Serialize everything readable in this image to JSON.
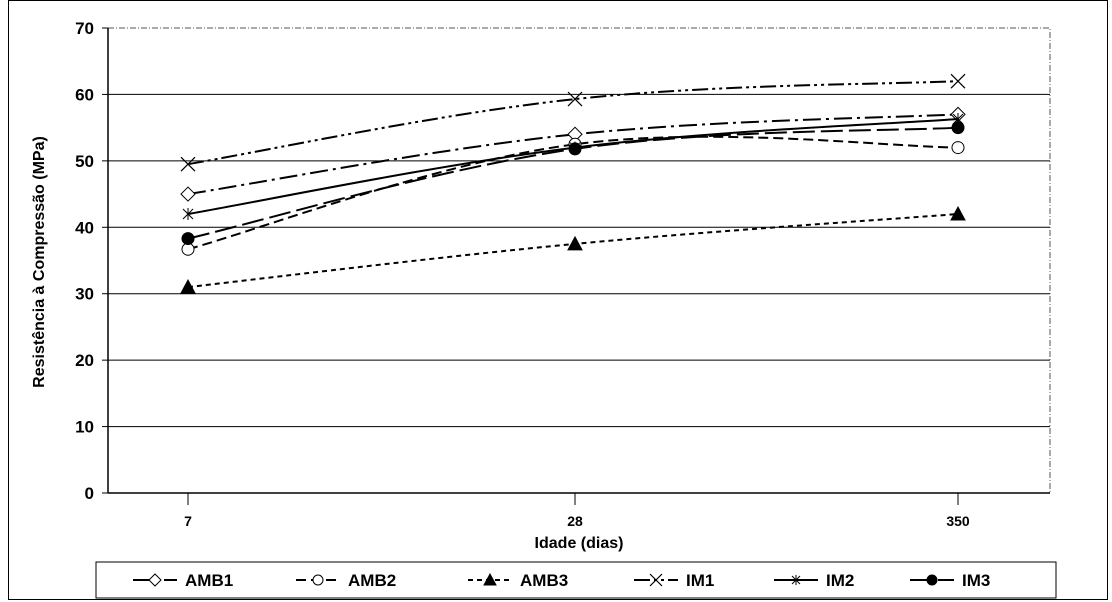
{
  "chart_data": {
    "type": "line",
    "title": "",
    "xlabel": "Idade (dias)",
    "ylabel": "Resistência à Compressão (MPa)",
    "categories": [
      "7",
      "28",
      "350"
    ],
    "ylim": [
      0,
      70
    ],
    "yticks": [
      0,
      10,
      20,
      30,
      40,
      50,
      60,
      70
    ],
    "grid": "horizontal",
    "legend_position": "bottom",
    "series": [
      {
        "name": "AMB1",
        "values": [
          45,
          54,
          57
        ],
        "marker": "diamond-open",
        "dash": "long-dash-dot"
      },
      {
        "name": "AMB2",
        "values": [
          36.7,
          52.5,
          52
        ],
        "marker": "circle-open",
        "dash": "dash"
      },
      {
        "name": "AMB3",
        "values": [
          31,
          37.5,
          42
        ],
        "marker": "triangle-filled",
        "dash": "short-dash"
      },
      {
        "name": "IM1",
        "values": [
          49.5,
          59.3,
          62
        ],
        "marker": "x",
        "dash": "dash-dot-dot"
      },
      {
        "name": "IM2",
        "values": [
          42,
          52,
          56.3
        ],
        "marker": "star",
        "dash": "solid"
      },
      {
        "name": "IM3",
        "values": [
          38.3,
          51.8,
          55
        ],
        "marker": "circle-filled",
        "dash": "long-dash"
      }
    ]
  }
}
